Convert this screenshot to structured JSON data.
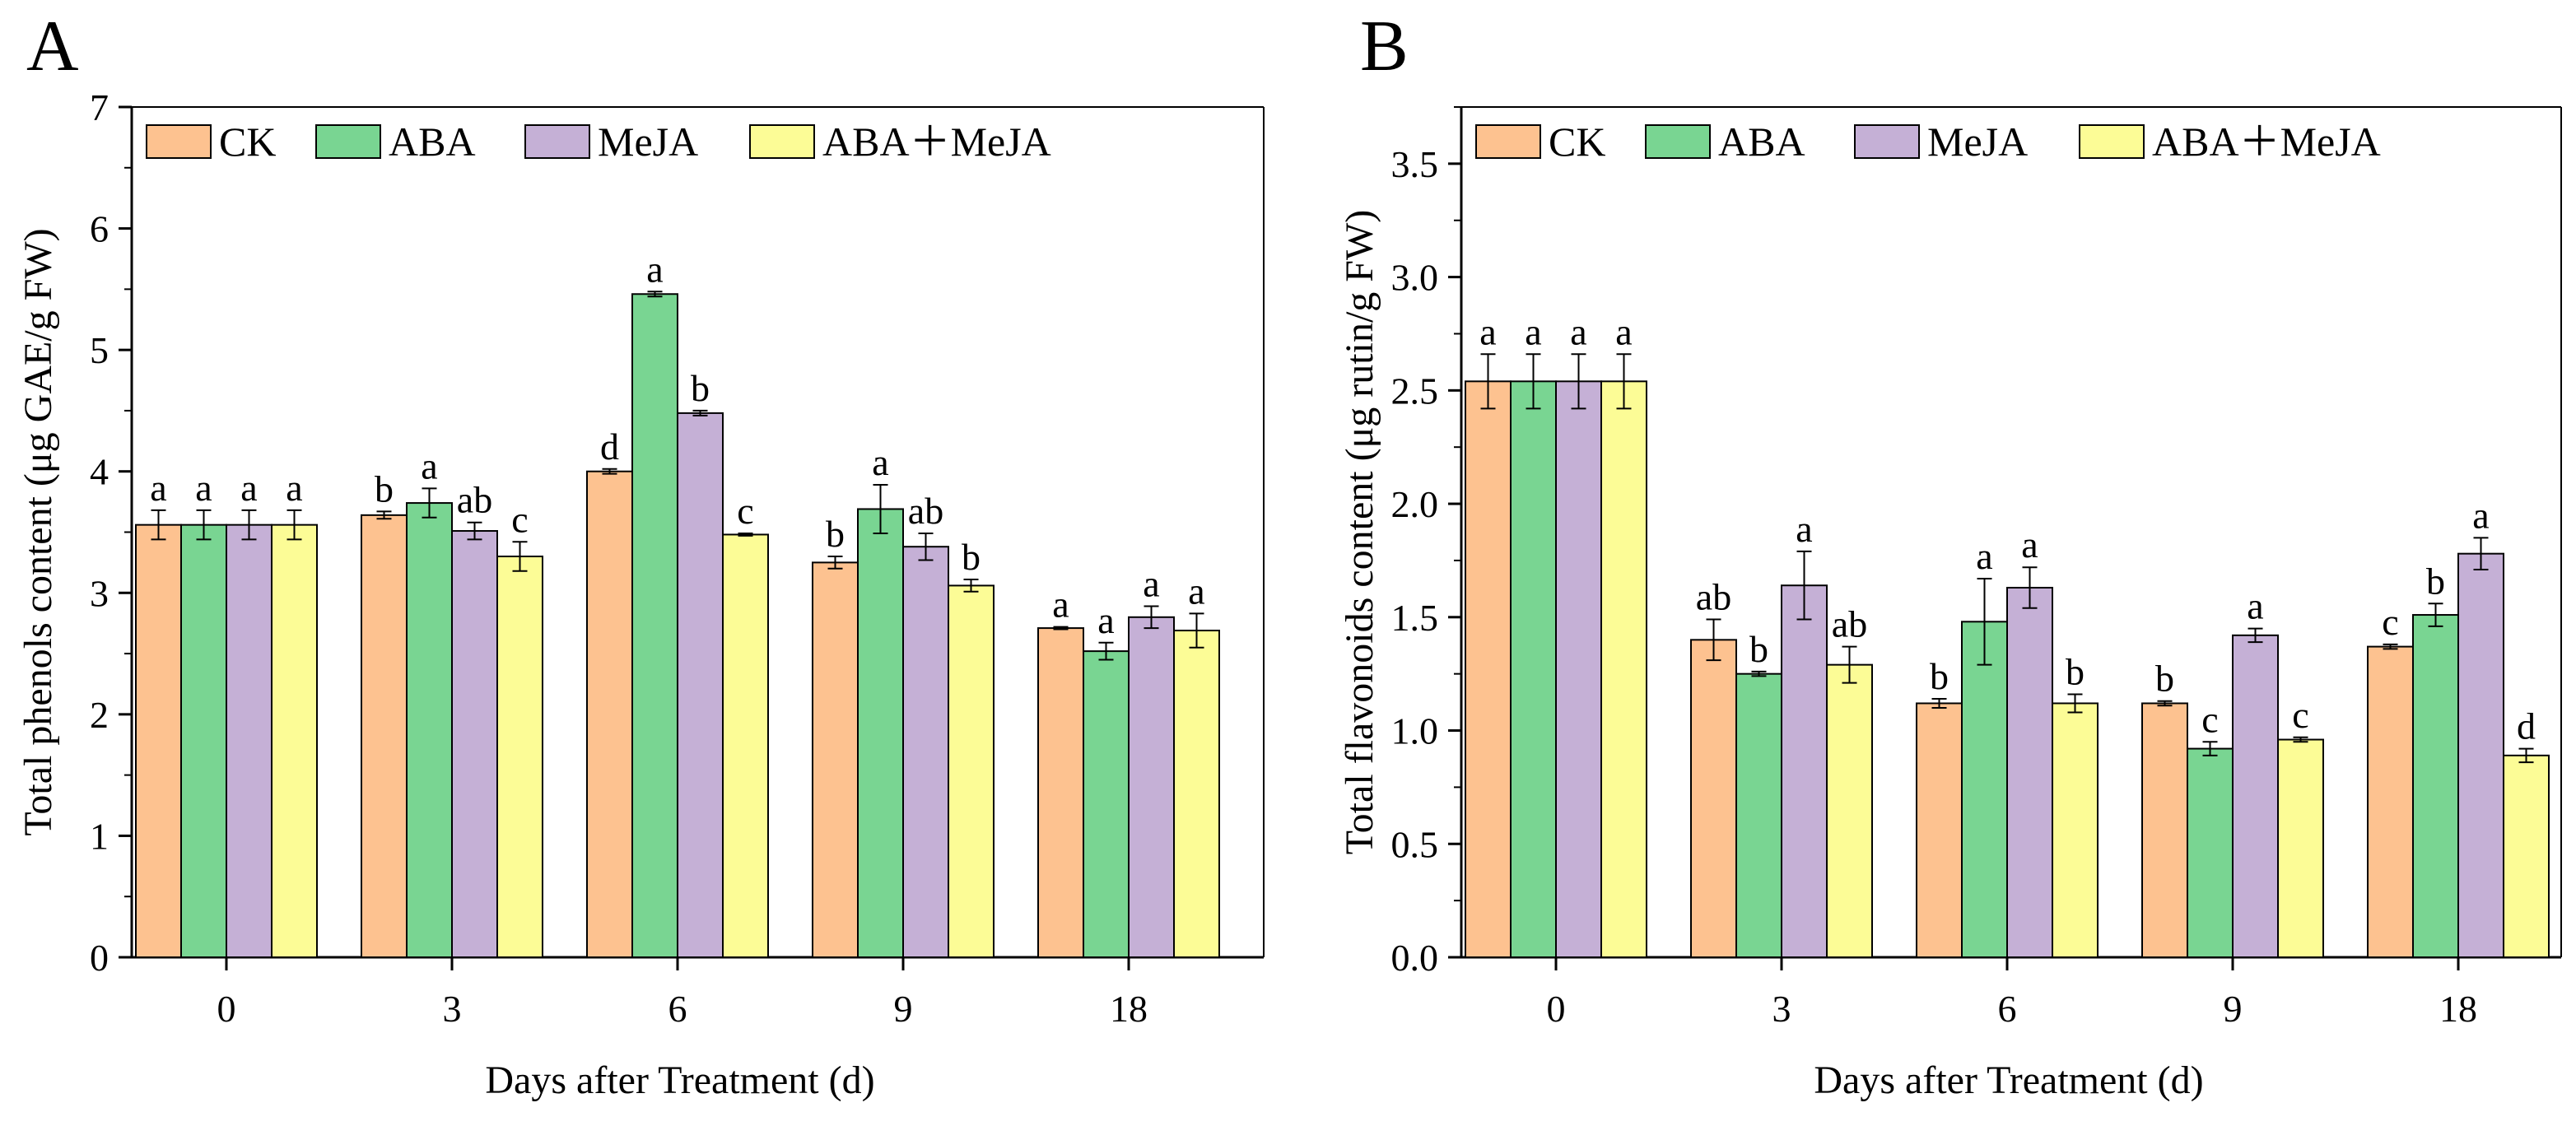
{
  "panel_labels": [
    "A",
    "B"
  ],
  "colors": {
    "CK": "#fdc290",
    "ABA": "#79d592",
    "MeJA": "#c5b0d6",
    "ABA＋MeJA": "#fcfc96",
    "stroke": "#000000"
  },
  "chart_data": [
    {
      "type": "bar",
      "panel": "A",
      "ylabel": "Total phenols content (μg GAE/g FW)",
      "xlabel": "Days after Treatment (d)",
      "categories": [
        "0",
        "3",
        "6",
        "9",
        "18"
      ],
      "ylim": [
        0,
        7
      ],
      "yticks": [
        "0",
        "1",
        "2",
        "3",
        "4",
        "5",
        "6",
        "7"
      ],
      "legend_position": "top",
      "series": [
        {
          "name": "CK",
          "values": [
            3.56,
            3.64,
            4.0,
            3.25,
            2.71
          ],
          "errors": [
            0.12,
            0.03,
            0.02,
            0.05,
            0.01
          ],
          "letters": [
            "a",
            "b",
            "d",
            "b",
            "a"
          ]
        },
        {
          "name": "ABA",
          "values": [
            3.56,
            3.74,
            5.46,
            3.69,
            2.52
          ],
          "errors": [
            0.12,
            0.12,
            0.02,
            0.2,
            0.07
          ],
          "letters": [
            "a",
            "a",
            "a",
            "a",
            "a"
          ]
        },
        {
          "name": "MeJA",
          "values": [
            3.56,
            3.51,
            4.48,
            3.38,
            2.8
          ],
          "errors": [
            0.12,
            0.07,
            0.02,
            0.11,
            0.09
          ],
          "letters": [
            "a",
            "ab",
            "b",
            "ab",
            "a"
          ]
        },
        {
          "name": "ABA＋MeJA",
          "values": [
            3.56,
            3.3,
            3.48,
            3.06,
            2.69
          ],
          "errors": [
            0.12,
            0.12,
            0.01,
            0.05,
            0.14
          ],
          "letters": [
            "a",
            "c",
            "c",
            "b",
            "a"
          ]
        }
      ]
    },
    {
      "type": "bar",
      "panel": "B",
      "ylabel": "Total flavonoids content (μg rutin/g FW)",
      "xlabel": "Days after Treatment (d)",
      "categories": [
        "0",
        "3",
        "6",
        "9",
        "18"
      ],
      "ylim": [
        0,
        3.75
      ],
      "yticks": [
        "0.0",
        "0.5",
        "1.0",
        "1.5",
        "2.0",
        "2.5",
        "3.0",
        "3.5"
      ],
      "legend_position": "top",
      "series": [
        {
          "name": "CK",
          "values": [
            2.54,
            1.4,
            1.12,
            1.12,
            1.37
          ],
          "errors": [
            0.12,
            0.09,
            0.02,
            0.01,
            0.01
          ],
          "letters": [
            "a",
            "ab",
            "b",
            "b",
            "c"
          ]
        },
        {
          "name": "ABA",
          "values": [
            2.54,
            1.25,
            1.48,
            0.92,
            1.51
          ],
          "errors": [
            0.12,
            0.01,
            0.19,
            0.03,
            0.05
          ],
          "letters": [
            "a",
            "b",
            "a",
            "c",
            "b"
          ]
        },
        {
          "name": "MeJA",
          "values": [
            2.54,
            1.64,
            1.63,
            1.42,
            1.78
          ],
          "errors": [
            0.12,
            0.15,
            0.09,
            0.03,
            0.07
          ],
          "letters": [
            "a",
            "a",
            "a",
            "a",
            "a"
          ]
        },
        {
          "name": "ABA＋MeJA",
          "values": [
            2.54,
            1.29,
            1.12,
            0.96,
            0.89
          ],
          "errors": [
            0.12,
            0.08,
            0.04,
            0.01,
            0.03
          ],
          "letters": [
            "a",
            "ab",
            "b",
            "c",
            "d"
          ]
        }
      ]
    }
  ]
}
